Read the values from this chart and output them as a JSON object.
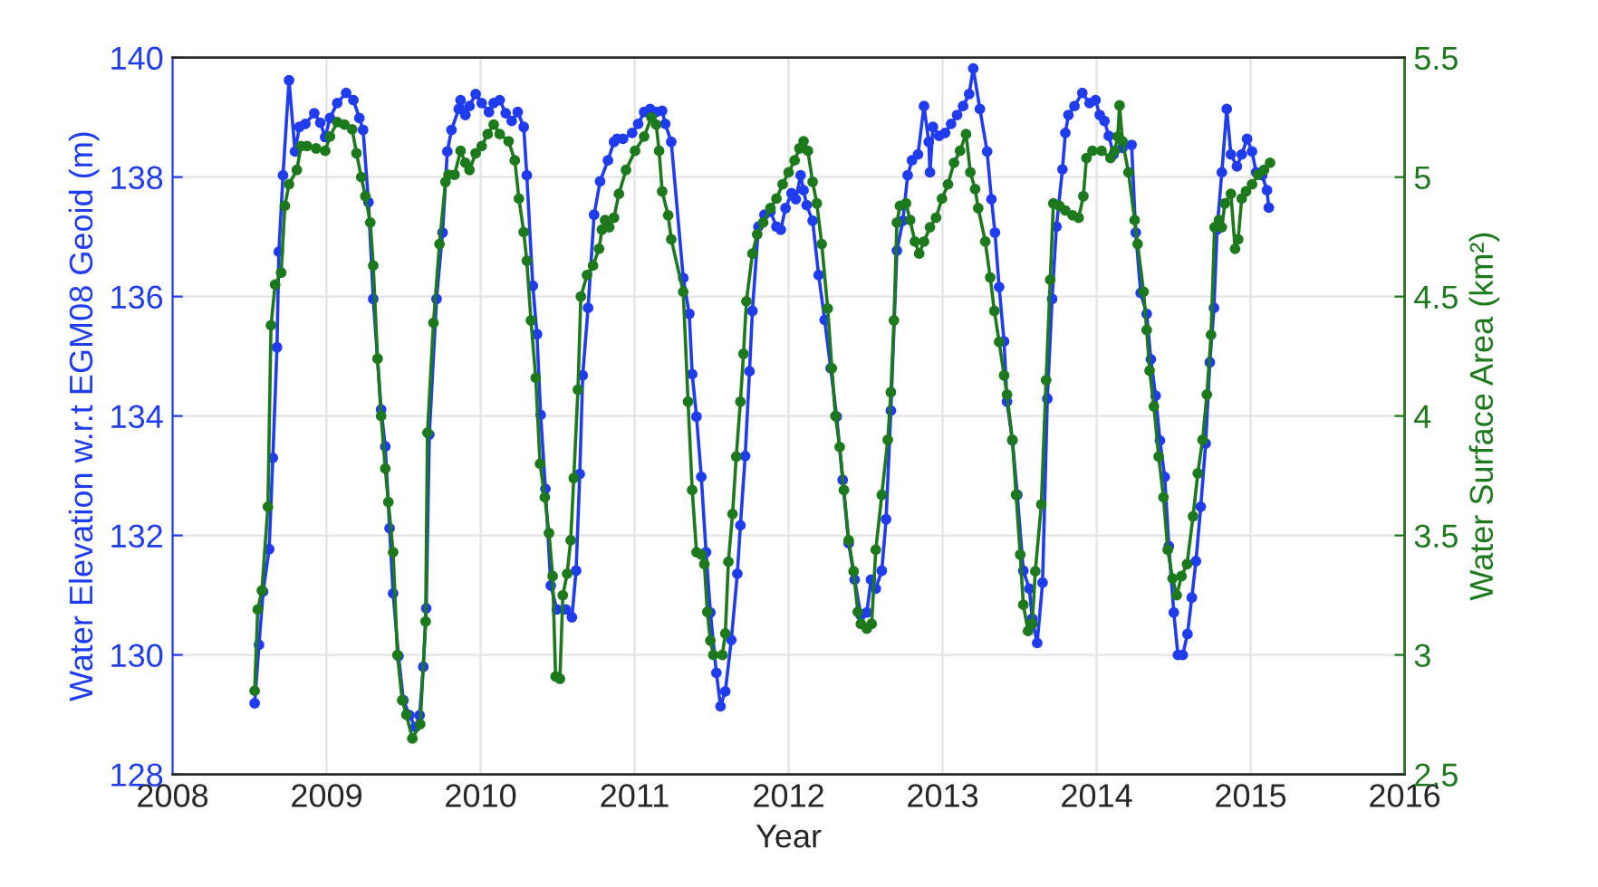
{
  "chart_data": {
    "type": "line",
    "xlabel": "Year",
    "ylabel": "Water Elevation w.r.t EGM08 Geoid (m)",
    "y2label": "Water Surface Area (km²)",
    "xlim": [
      2008,
      2016
    ],
    "xticks": [
      2008,
      2009,
      2010,
      2011,
      2012,
      2013,
      2014,
      2015,
      2016
    ],
    "ylim": [
      128,
      140
    ],
    "yticks": [
      128,
      130,
      132,
      134,
      136,
      138,
      140
    ],
    "y2lim": [
      2.5,
      5.5
    ],
    "y2ticks": [
      2.5,
      3,
      3.5,
      4,
      4.5,
      5,
      5.5
    ],
    "grid": true,
    "marker": "circle",
    "line_style": "solid",
    "series": [
      {
        "color": "#1f3cf0",
        "x": [
          2008.533,
          2008.561,
          2008.588,
          2008.627,
          2008.651,
          2008.678,
          2008.69,
          2008.717,
          2008.756,
          2008.795,
          2008.823,
          2008.862,
          2008.92,
          2008.959,
          2008.991,
          2009.022,
          2009.069,
          2009.127,
          2009.174,
          2009.213,
          2009.237,
          2009.272,
          2009.303,
          2009.354,
          2009.381,
          2009.409,
          2009.432,
          2009.467,
          2009.499,
          2009.538,
          2009.577,
          2009.604,
          2009.628,
          2009.647,
          2009.667,
          2009.714,
          2009.753,
          2009.784,
          2009.811,
          2009.858,
          2009.87,
          2009.901,
          2009.928,
          2009.968,
          2010.007,
          2010.054,
          2010.085,
          2010.124,
          2010.163,
          2010.202,
          2010.241,
          2010.28,
          2010.3,
          2010.339,
          2010.366,
          2010.39,
          2010.421,
          2010.456,
          2010.495,
          2010.554,
          2010.593,
          2010.62,
          2010.644,
          2010.663,
          2010.698,
          2010.737,
          2010.776,
          2010.827,
          2010.866,
          2010.886,
          2010.925,
          2010.984,
          2011.023,
          2011.062,
          2011.101,
          2011.14,
          2011.179,
          2011.199,
          2011.238,
          2011.316,
          2011.355,
          2011.374,
          2011.402,
          2011.433,
          2011.464,
          2011.492,
          2011.531,
          2011.558,
          2011.589,
          2011.628,
          2011.667,
          2011.687,
          2011.718,
          2011.746,
          2011.765,
          2011.804,
          2011.843,
          2011.882,
          2011.921,
          2011.949,
          2011.98,
          2012.019,
          2012.047,
          2012.078,
          2012.097,
          2012.117,
          2012.156,
          2012.195,
          2012.234,
          2012.273,
          2012.312,
          2012.351,
          2012.39,
          2012.429,
          2012.469,
          2012.508,
          2012.535,
          2012.566,
          2012.605,
          2012.633,
          2012.664,
          2012.703,
          2012.742,
          2012.773,
          2012.801,
          2012.84,
          2012.879,
          2012.91,
          2012.918,
          2012.937,
          2012.977,
          2013.016,
          2013.055,
          2013.094,
          2013.133,
          2013.172,
          2013.199,
          2013.242,
          2013.289,
          2013.317,
          2013.34,
          2013.367,
          2013.399,
          2013.418,
          2013.453,
          2013.485,
          2013.524,
          2013.563,
          2013.582,
          2013.614,
          2013.649,
          2013.68,
          2013.711,
          2013.739,
          2013.778,
          2013.797,
          2013.817,
          2013.856,
          2013.907,
          2013.954,
          2013.993,
          2014.02,
          2014.051,
          2014.079,
          2014.11,
          2014.168,
          2014.227,
          2014.254,
          2014.286,
          2014.325,
          2014.352,
          2014.383,
          2014.411,
          2014.442,
          2014.469,
          2014.501,
          2014.528,
          2014.559,
          2014.59,
          2014.618,
          2014.645,
          2014.676,
          2014.708,
          2014.735,
          2014.762,
          2014.782,
          2014.813,
          2014.845,
          2014.872,
          2014.911,
          2014.942,
          2014.977,
          2015.009,
          2015.036,
          2015.075,
          2015.106,
          2015.118
        ],
        "values": [
          129.19,
          130.17,
          131.06,
          131.77,
          133.3,
          135.15,
          136.75,
          138.03,
          139.62,
          138.43,
          138.84,
          138.89,
          139.07,
          138.91,
          138.67,
          138.99,
          139.24,
          139.41,
          139.29,
          138.99,
          138.79,
          137.58,
          135.96,
          134.11,
          133.49,
          132.12,
          131.03,
          129.98,
          129.24,
          128.99,
          128.79,
          128.99,
          129.8,
          130.78,
          133.69,
          135.96,
          137.07,
          138.43,
          138.79,
          139.14,
          139.29,
          139.04,
          139.19,
          139.39,
          139.24,
          139.09,
          139.24,
          139.29,
          139.07,
          138.94,
          139.09,
          138.84,
          138.03,
          136.18,
          135.37,
          134.02,
          132.78,
          131.16,
          130.76,
          130.76,
          130.63,
          131.41,
          133.03,
          134.68,
          135.81,
          137.37,
          137.93,
          138.28,
          138.59,
          138.64,
          138.64,
          138.74,
          138.89,
          139.09,
          139.14,
          139.09,
          139.11,
          138.89,
          138.59,
          136.31,
          135.71,
          134.7,
          133.99,
          132.98,
          131.72,
          130.71,
          129.7,
          129.14,
          129.39,
          130.25,
          131.36,
          132.17,
          133.33,
          134.75,
          135.76,
          137.17,
          137.37,
          137.42,
          137.17,
          137.12,
          137.48,
          137.73,
          137.63,
          138.03,
          137.78,
          137.53,
          137.27,
          136.36,
          135.61,
          134.8,
          133.99,
          132.93,
          131.87,
          131.26,
          130.66,
          130.71,
          131.26,
          131.11,
          131.41,
          132.27,
          134.09,
          136.77,
          137.27,
          138.03,
          138.28,
          138.38,
          139.19,
          138.59,
          138.08,
          138.84,
          138.69,
          138.74,
          138.89,
          139.04,
          139.19,
          139.39,
          139.82,
          139.14,
          138.43,
          137.63,
          137.07,
          136.16,
          135.25,
          134.24,
          133.59,
          132.68,
          131.41,
          131.11,
          130.61,
          130.2,
          131.21,
          134.29,
          135.96,
          137.17,
          138.13,
          138.74,
          139.04,
          139.19,
          139.41,
          139.24,
          139.29,
          139.04,
          138.94,
          138.69,
          138.38,
          138.49,
          138.54,
          137.07,
          136.06,
          135.71,
          134.95,
          134.34,
          133.59,
          132.98,
          131.82,
          130.71,
          130.0,
          130.0,
          130.35,
          130.96,
          131.57,
          132.48,
          133.54,
          134.9,
          135.81,
          137.12,
          138.08,
          139.14,
          138.38,
          138.18,
          138.38,
          138.64,
          138.43,
          138.08,
          138.03,
          137.78,
          137.49
        ]
      },
      {
        "color": "#1c7a1c",
        "axis": "y2",
        "x": [
          2008.533,
          2008.553,
          2008.58,
          2008.619,
          2008.639,
          2008.666,
          2008.705,
          2008.729,
          2008.756,
          2008.807,
          2008.834,
          2008.873,
          2008.932,
          2008.991,
          2009.022,
          2009.069,
          2009.116,
          2009.166,
          2009.194,
          2009.225,
          2009.252,
          2009.284,
          2009.303,
          2009.331,
          2009.354,
          2009.381,
          2009.401,
          2009.432,
          2009.46,
          2009.491,
          2009.518,
          2009.557,
          2009.608,
          2009.643,
          2009.655,
          2009.694,
          2009.733,
          2009.772,
          2009.792,
          2009.831,
          2009.87,
          2009.901,
          2009.928,
          2009.968,
          2010.007,
          2010.046,
          2010.085,
          2010.124,
          2010.182,
          2010.222,
          2010.249,
          2010.28,
          2010.3,
          2010.327,
          2010.358,
          2010.386,
          2010.417,
          2010.444,
          2010.468,
          2010.487,
          2010.515,
          2010.534,
          2010.562,
          2010.585,
          2010.605,
          2010.632,
          2010.651,
          2010.691,
          2010.73,
          2010.769,
          2010.788,
          2010.808,
          2010.835,
          2010.866,
          2010.898,
          2010.944,
          2011.003,
          2011.062,
          2011.109,
          2011.14,
          2011.159,
          2011.179,
          2011.218,
          2011.238,
          2011.316,
          2011.347,
          2011.374,
          2011.402,
          2011.433,
          2011.453,
          2011.472,
          2011.492,
          2011.511,
          2011.57,
          2011.589,
          2011.609,
          2011.636,
          2011.66,
          2011.687,
          2011.707,
          2011.726,
          2011.765,
          2011.796,
          2011.835,
          2011.882,
          2011.921,
          2011.961,
          2012.0,
          2012.039,
          2012.07,
          2012.097,
          2012.125,
          2012.156,
          2012.183,
          2012.215,
          2012.254,
          2012.281,
          2012.304,
          2012.332,
          2012.359,
          2012.39,
          2012.422,
          2012.449,
          2012.469,
          2012.508,
          2012.539,
          2012.566,
          2012.605,
          2012.644,
          2012.664,
          2012.684,
          2012.703,
          2012.723,
          2012.762,
          2012.789,
          2012.82,
          2012.848,
          2012.879,
          2012.918,
          2012.957,
          2012.996,
          2013.035,
          2013.074,
          2013.113,
          2013.152,
          2013.18,
          2013.211,
          2013.231,
          2013.277,
          2013.309,
          2013.336,
          2013.367,
          2013.399,
          2013.418,
          2013.453,
          2013.477,
          2013.504,
          2013.524,
          2013.555,
          2013.582,
          2013.602,
          2013.641,
          2013.672,
          2013.699,
          2013.719,
          2013.758,
          2013.797,
          2013.844,
          2013.883,
          2013.914,
          2013.934,
          2013.973,
          2014.032,
          2014.09,
          2014.118,
          2014.137,
          2014.149,
          2014.168,
          2014.207,
          2014.247,
          2014.266,
          2014.305,
          2014.325,
          2014.344,
          2014.372,
          2014.403,
          2014.434,
          2014.462,
          2014.493,
          2014.52,
          2014.551,
          2014.587,
          2014.626,
          2014.657,
          2014.688,
          2014.716,
          2014.743,
          2014.766,
          2014.794,
          2014.813,
          2014.833,
          2014.872,
          2014.899,
          2014.919,
          2014.942,
          2014.97,
          2015.009,
          2015.048,
          2015.087,
          2015.126
        ],
        "values": [
          2.85,
          3.19,
          3.27,
          3.62,
          4.38,
          4.55,
          4.6,
          4.88,
          4.97,
          5.03,
          5.13,
          5.13,
          5.12,
          5.11,
          5.17,
          5.23,
          5.22,
          5.2,
          5.1,
          5.0,
          4.92,
          4.81,
          4.63,
          4.24,
          4.0,
          3.78,
          3.64,
          3.43,
          3.0,
          2.81,
          2.75,
          2.65,
          2.71,
          3.14,
          3.93,
          4.39,
          4.72,
          4.98,
          5.01,
          5.01,
          5.11,
          5.06,
          5.03,
          5.1,
          5.13,
          5.18,
          5.22,
          5.18,
          5.15,
          5.07,
          4.91,
          4.77,
          4.65,
          4.4,
          4.16,
          3.8,
          3.66,
          3.51,
          3.33,
          2.91,
          2.9,
          3.25,
          3.34,
          3.48,
          3.74,
          4.11,
          4.5,
          4.59,
          4.63,
          4.7,
          4.78,
          4.82,
          4.79,
          4.83,
          4.93,
          5.03,
          5.11,
          5.17,
          5.25,
          5.22,
          5.11,
          4.94,
          4.84,
          4.74,
          4.52,
          4.06,
          3.69,
          3.43,
          3.42,
          3.38,
          3.18,
          3.06,
          3.0,
          3.0,
          3.09,
          3.39,
          3.59,
          3.83,
          4.06,
          4.26,
          4.48,
          4.68,
          4.76,
          4.81,
          4.87,
          4.91,
          4.97,
          5.02,
          5.07,
          5.12,
          5.15,
          5.11,
          4.98,
          4.89,
          4.72,
          4.45,
          4.2,
          4.0,
          3.87,
          3.69,
          3.48,
          3.35,
          3.18,
          3.13,
          3.11,
          3.13,
          3.44,
          3.67,
          3.9,
          4.1,
          4.4,
          4.81,
          4.88,
          4.89,
          4.82,
          4.73,
          4.68,
          4.73,
          4.79,
          4.83,
          4.91,
          4.97,
          5.06,
          5.11,
          5.18,
          5.02,
          4.95,
          4.87,
          4.73,
          4.58,
          4.44,
          4.31,
          4.17,
          4.09,
          3.9,
          3.67,
          3.42,
          3.21,
          3.1,
          3.13,
          3.35,
          3.63,
          4.15,
          4.57,
          4.89,
          4.88,
          4.86,
          4.84,
          4.83,
          4.92,
          5.08,
          5.11,
          5.11,
          5.08,
          5.11,
          5.17,
          5.3,
          5.15,
          5.02,
          4.82,
          4.72,
          4.52,
          4.36,
          4.19,
          4.04,
          3.83,
          3.66,
          3.44,
          3.32,
          3.25,
          3.33,
          3.38,
          3.58,
          3.76,
          3.9,
          4.09,
          4.34,
          4.79,
          4.82,
          4.79,
          4.89,
          4.93,
          4.7,
          4.74,
          4.91,
          4.94,
          4.97,
          5.01,
          5.03,
          5.06
        ]
      }
    ]
  }
}
